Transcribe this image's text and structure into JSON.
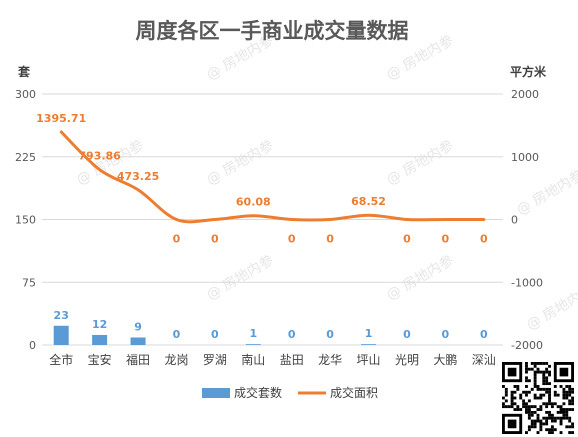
{
  "title": "周度各区一手商业成交量数据",
  "watermark": "@ 房地内参",
  "colors": {
    "bar": "#5b9bd5",
    "line": "#ed7d31",
    "grid": "#d9d9d9",
    "text": "#595959"
  },
  "chart_data": {
    "type": "bar",
    "categories": [
      "全市",
      "宝安",
      "福田",
      "龙岗",
      "罗湖",
      "南山",
      "盐田",
      "龙华",
      "坪山",
      "光明",
      "大鹏",
      "深汕"
    ],
    "series": [
      {
        "name": "成交套数",
        "type": "bar",
        "axis": "left",
        "values": [
          23,
          12,
          9,
          0,
          0,
          1,
          0,
          0,
          1,
          0,
          0,
          0
        ],
        "labels": [
          "23",
          "12",
          "9",
          "0",
          "0",
          "1",
          "0",
          "0",
          "1",
          "0",
          "0",
          "0"
        ]
      },
      {
        "name": "成交面积",
        "type": "line",
        "axis": "right",
        "values": [
          1395.71,
          793.86,
          473.25,
          0,
          0,
          60.08,
          0,
          0,
          68.52,
          0,
          0,
          0
        ],
        "labels": [
          "1395.71",
          "793.86",
          "473.25",
          "0",
          "0",
          "60.08",
          "0",
          "0",
          "68.52",
          "0",
          "0",
          "0"
        ]
      }
    ],
    "y_left": {
      "label": "套",
      "min": 0,
      "max": 300,
      "ticks": [
        0,
        75,
        150,
        225,
        300
      ]
    },
    "y_right": {
      "label": "平方米",
      "min": -2000,
      "max": 2000,
      "ticks": [
        -2000,
        -1000,
        0,
        1000,
        2000
      ]
    },
    "grid": true,
    "legend": "bottom"
  }
}
